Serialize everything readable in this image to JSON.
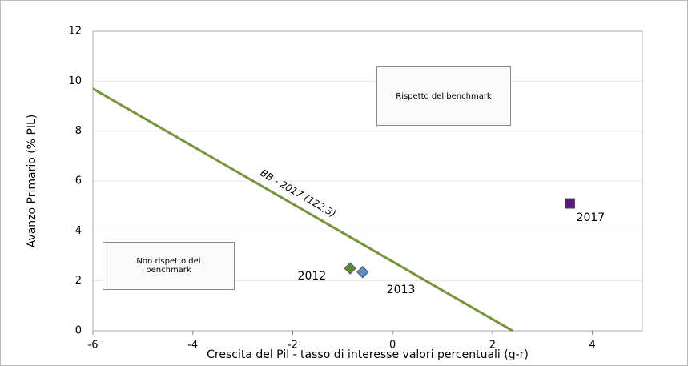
{
  "chart_data": {
    "type": "scatter",
    "x_label": "Crescita del Pil - tasso di interesse valori percentuali (g-r)",
    "y_label": "Avanzo Primario (% PIL)",
    "xlim": [
      -6,
      5
    ],
    "xticks": [
      -6,
      -4,
      -2,
      0,
      2,
      4
    ],
    "ylim": [
      0,
      12
    ],
    "yticks": [
      0,
      2,
      4,
      6,
      8,
      10,
      12
    ],
    "grid": true,
    "series": [
      {
        "name": "BB - 2017 (122,3)",
        "color": "#77933c",
        "marker": "line",
        "x": [
          -6,
          2.4
        ],
        "values": [
          9.7,
          0
        ]
      },
      {
        "name": "2012",
        "color": "#5f8a3a",
        "marker": "diamond",
        "x": [
          -0.85
        ],
        "values": [
          2.5
        ]
      },
      {
        "name": "2013",
        "color": "#5b8fd0",
        "marker": "diamond",
        "x": [
          -0.6
        ],
        "values": [
          2.35
        ]
      },
      {
        "name": "2017",
        "color": "#5a1a7a",
        "marker": "square",
        "x": [
          3.55
        ],
        "values": [
          5.1
        ]
      }
    ],
    "annotations": [
      "Rispetto del benchmark",
      "Non rispetto  del benchmark"
    ]
  }
}
